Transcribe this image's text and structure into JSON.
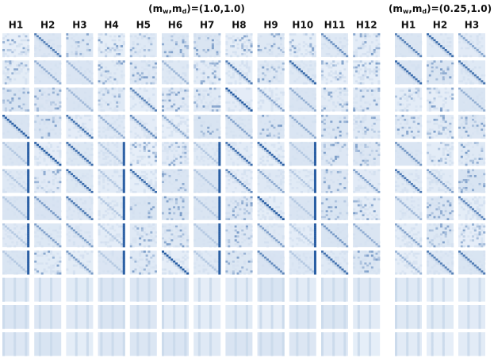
{
  "groups": [
    {
      "title": [
        "(m",
        "w",
        ",m",
        "d",
        ")=(1.0,1.0)"
      ],
      "heads": [
        "H1",
        "H2",
        "H3",
        "H4",
        "H5",
        "H6",
        "H7",
        "H8",
        "H9",
        "H10",
        "H11",
        "H12"
      ]
    },
    {
      "title": [
        "(m",
        "w",
        ",m",
        "d",
        ")=(0.25,1.0)"
      ],
      "heads": [
        "H1",
        "H2",
        "H3"
      ]
    }
  ]
}
